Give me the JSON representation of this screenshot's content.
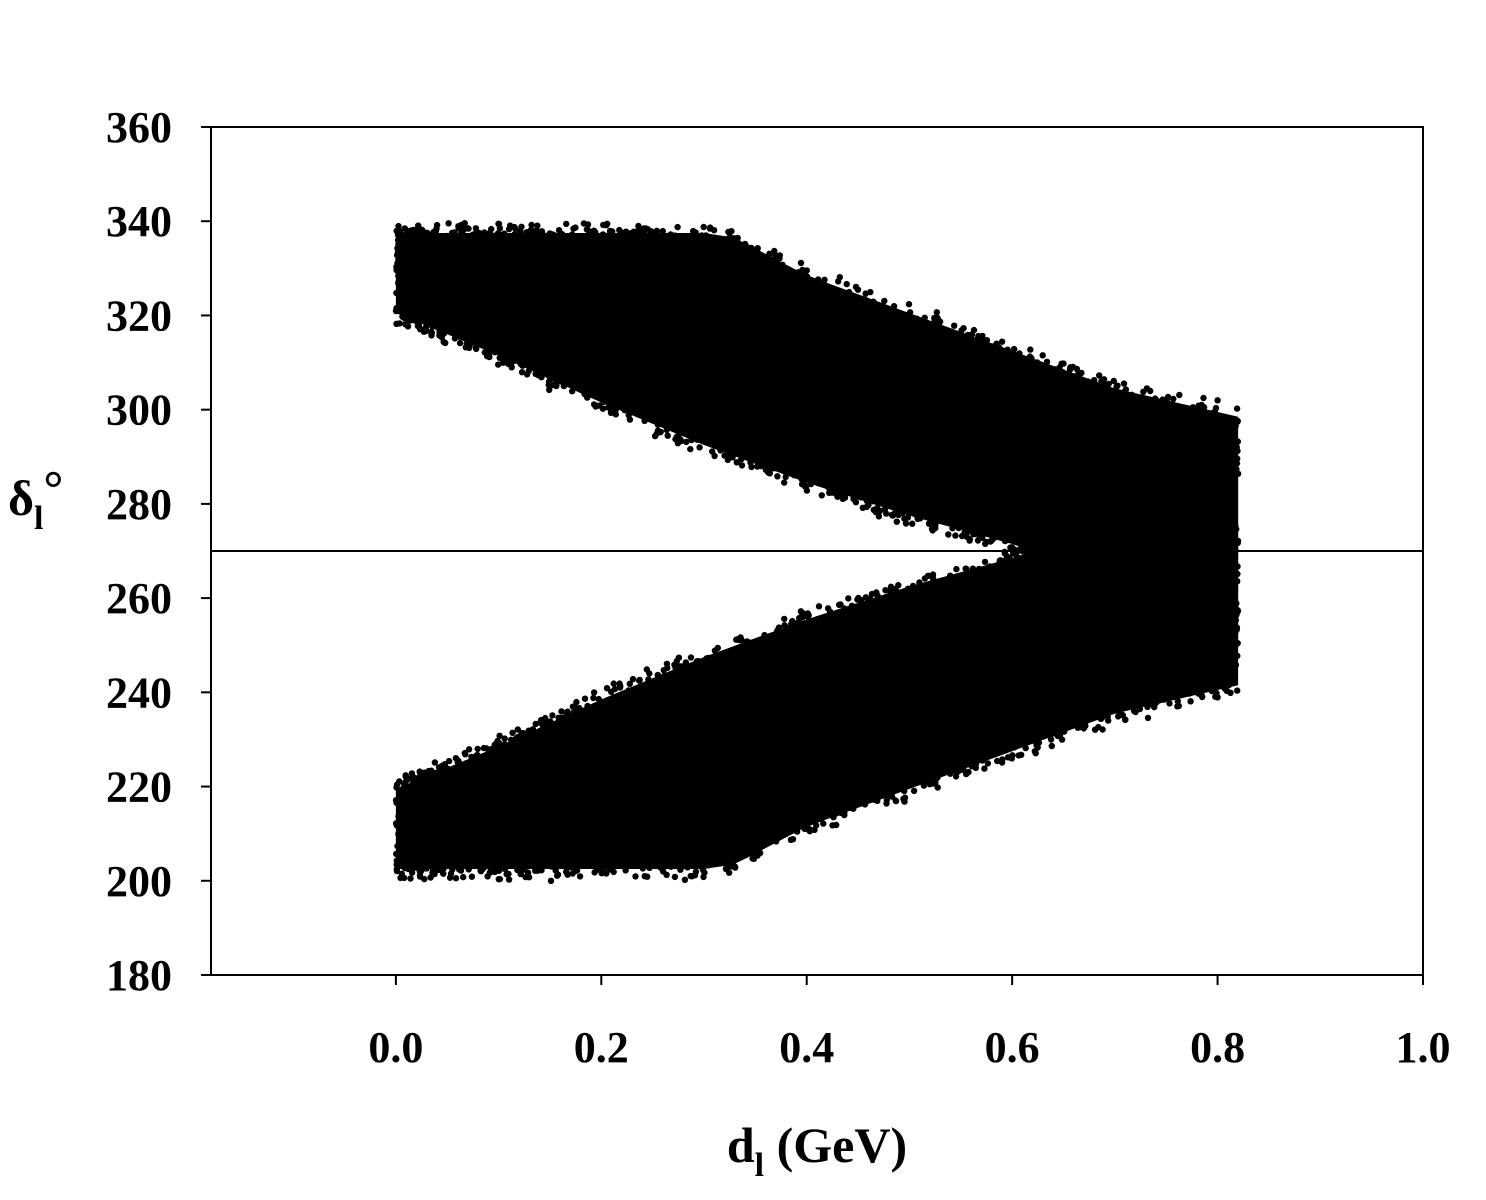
{
  "chart_data": {
    "type": "scatter",
    "title": "",
    "xlabel": {
      "main": "d",
      "sub": "l",
      "rest": " (GeV)"
    },
    "ylabel": {
      "main": "δ",
      "sub": "l",
      "rest": "°"
    },
    "xlim": [
      -0.18,
      1.0
    ],
    "ylim": [
      180,
      360
    ],
    "xticks": [
      "0.0",
      "0.2",
      "0.4",
      "0.6",
      "0.8",
      "1.0"
    ],
    "xtick_values": [
      0.0,
      0.2,
      0.4,
      0.6,
      0.8,
      1.0
    ],
    "yticks": [
      "180",
      "200",
      "220",
      "240",
      "260",
      "280",
      "300",
      "320",
      "340",
      "360"
    ],
    "ytick_values": [
      180,
      200,
      220,
      240,
      260,
      280,
      300,
      320,
      340,
      360
    ],
    "reference_line": {
      "orientation": "horizontal",
      "y": 270
    },
    "marker_color": "#000000",
    "grid": false,
    "legend": "none",
    "series": [
      {
        "band": "upper",
        "description_of_region_as_data": "dense band of points",
        "lower_edge": {
          "x": [
            0.0,
            0.1,
            0.2,
            0.3,
            0.4,
            0.5,
            0.6,
            0.7,
            0.82
          ],
          "y": [
            319,
            310,
            300,
            291,
            283,
            276,
            270,
            262,
            248
          ]
        },
        "upper_edge": {
          "x": [
            0.0,
            0.1,
            0.2,
            0.3,
            0.33,
            0.4,
            0.5,
            0.6,
            0.7,
            0.82
          ],
          "y": [
            339,
            339,
            339,
            339,
            338,
            330,
            322,
            314,
            306,
            300
          ]
        }
      },
      {
        "band": "lower",
        "description_of_region_as_data": "dense band of points",
        "lower_edge": {
          "x": [
            0.0,
            0.1,
            0.2,
            0.3,
            0.33,
            0.4,
            0.5,
            0.6,
            0.7,
            0.82
          ],
          "y": [
            201,
            201,
            201,
            201,
            202,
            210,
            218,
            226,
            234,
            240
          ]
        },
        "upper_edge": {
          "x": [
            0.0,
            0.1,
            0.2,
            0.3,
            0.4,
            0.5,
            0.6,
            0.7,
            0.82
          ],
          "y": [
            221,
            230,
            240,
            249,
            257,
            264,
            270,
            278,
            292
          ]
        }
      }
    ]
  }
}
